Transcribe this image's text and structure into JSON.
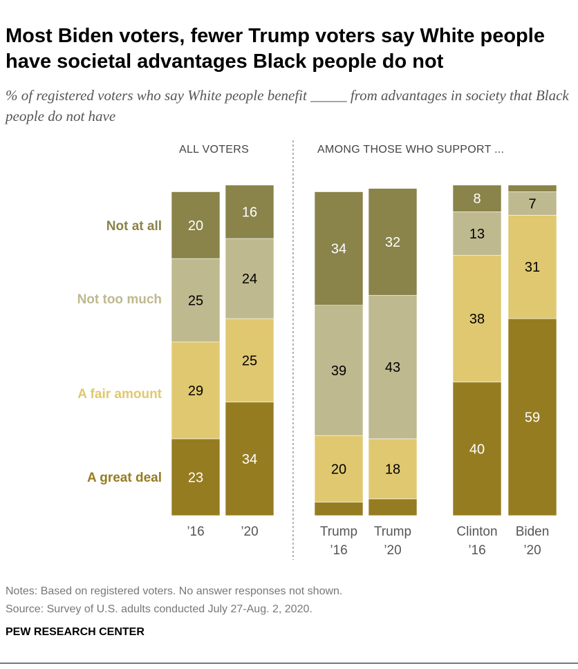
{
  "title": "Most Biden voters, fewer Trump voters say White people have societal advantages Black people do not",
  "subtitle": "% of registered voters who say White people benefit _____ from advantages in society that Black people do not have",
  "headers": {
    "all": "ALL VOTERS",
    "among": "AMONG THOSE WHO SUPPORT ..."
  },
  "notes": "Notes: Based on registered voters. No answer responses not shown.",
  "source": "Source: Survey of U.S. adults conducted July 27-Aug. 2, 2020.",
  "brand": "PEW RESEARCH CENTER",
  "chart_data": {
    "type": "bar",
    "stacked": true,
    "orientation": "vertical",
    "categories": [
      [
        "’16"
      ],
      [
        "’20"
      ],
      [
        "Trump",
        "’16"
      ],
      [
        "Trump",
        "’20"
      ],
      [
        "Clinton",
        "’16"
      ],
      [
        "Biden",
        "’20"
      ]
    ],
    "groups": [
      "ALL VOTERS",
      "AMONG THOSE WHO SUPPORT ..."
    ],
    "series": [
      {
        "name": "A great deal",
        "color": "#967C21",
        "values": [
          23,
          34,
          4,
          5,
          40,
          59
        ],
        "labels": [
          "23",
          "34",
          "",
          "",
          "40",
          "59"
        ]
      },
      {
        "name": "A fair amount",
        "color": "#E0C870",
        "values": [
          29,
          25,
          20,
          18,
          38,
          31
        ],
        "labels": [
          "29",
          "25",
          "20",
          "18",
          "38",
          "31"
        ]
      },
      {
        "name": "Not too much",
        "color": "#BFB98F",
        "values": [
          25,
          24,
          39,
          43,
          13,
          7
        ],
        "labels": [
          "25",
          "24",
          "39",
          "43",
          "13",
          "7"
        ]
      },
      {
        "name": "Not at all",
        "color": "#8A834A",
        "values": [
          20,
          16,
          34,
          32,
          8,
          2
        ],
        "labels": [
          "20",
          "16",
          "34",
          "32",
          "8",
          ""
        ]
      }
    ],
    "ylim": [
      0,
      100
    ]
  }
}
